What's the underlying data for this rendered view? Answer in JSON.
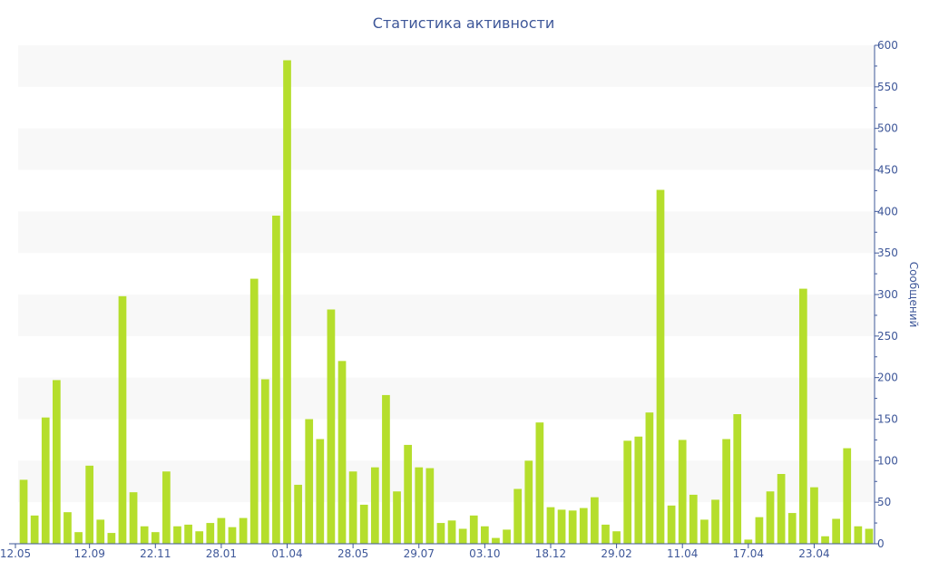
{
  "chart_data": {
    "type": "bar",
    "title": "Статистика активности",
    "ylabel": "Сообщений",
    "xlabel": "",
    "ylim": [
      0,
      600
    ],
    "y_ticks": [
      0,
      50,
      100,
      150,
      200,
      250,
      300,
      350,
      400,
      450,
      500,
      550,
      600
    ],
    "y_axis_position": "right",
    "grid": "alternating horizontal bands",
    "bar_color": "#b5de2c",
    "text_color": "#3e5799",
    "x_tick_labels": [
      {
        "label": "12.05",
        "index": 0
      },
      {
        "label": "12.09",
        "index": 6
      },
      {
        "label": "22.11",
        "index": 12
      },
      {
        "label": "28.01",
        "index": 18
      },
      {
        "label": "01.04",
        "index": 24
      },
      {
        "label": "28.05",
        "index": 30
      },
      {
        "label": "29.07",
        "index": 36
      },
      {
        "label": "03.10",
        "index": 42
      },
      {
        "label": "18.12",
        "index": 48
      },
      {
        "label": "29.02",
        "index": 54
      },
      {
        "label": "11.04",
        "index": 60
      },
      {
        "label": "17.04",
        "index": 66
      },
      {
        "label": "23.04",
        "index": 72
      }
    ],
    "values": [
      77,
      34,
      152,
      197,
      38,
      14,
      94,
      29,
      13,
      298,
      62,
      21,
      14,
      87,
      21,
      23,
      15,
      25,
      31,
      20,
      31,
      319,
      198,
      395,
      582,
      71,
      150,
      126,
      282,
      220,
      87,
      47,
      92,
      179,
      63,
      119,
      92,
      91,
      25,
      28,
      18,
      34,
      21,
      7,
      17,
      66,
      100,
      146,
      44,
      41,
      40,
      43,
      56,
      23,
      15,
      124,
      129,
      158,
      426,
      46,
      125,
      59,
      29,
      53,
      126,
      156,
      5,
      32,
      63,
      84,
      37,
      307,
      68,
      9,
      30,
      115,
      21,
      18
    ]
  }
}
